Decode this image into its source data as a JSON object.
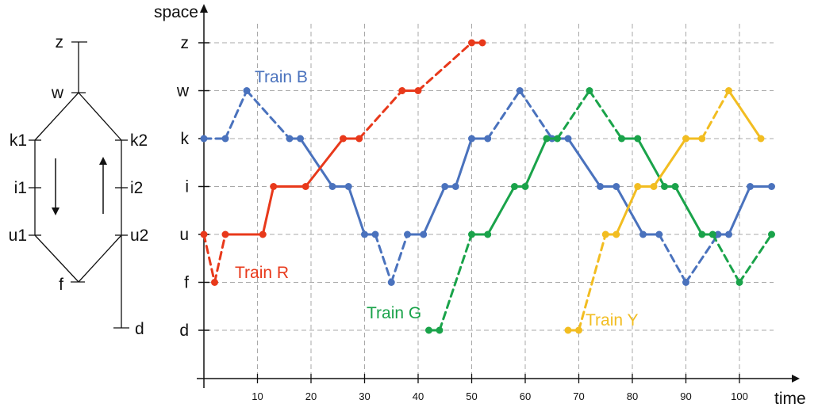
{
  "track_diagram": {
    "nodes": [
      {
        "id": "z",
        "label": "z"
      },
      {
        "id": "w",
        "label": "w"
      },
      {
        "id": "k1",
        "label": "k1"
      },
      {
        "id": "k2",
        "label": "k2"
      },
      {
        "id": "i1",
        "label": "i1"
      },
      {
        "id": "i2",
        "label": "i2"
      },
      {
        "id": "u1",
        "label": "u1"
      },
      {
        "id": "u2",
        "label": "u2"
      },
      {
        "id": "f",
        "label": "f"
      },
      {
        "id": "d",
        "label": "d"
      }
    ],
    "arrows": [
      "down",
      "up"
    ]
  },
  "chart_data": {
    "type": "line",
    "xlabel": "time",
    "ylabel": "space",
    "x_ticks": [
      10,
      20,
      30,
      40,
      50,
      60,
      70,
      80,
      90,
      100
    ],
    "xlim": [
      0,
      110
    ],
    "y_categories": [
      "d",
      "f",
      "u",
      "i",
      "k",
      "w",
      "z"
    ],
    "grid": true,
    "series": [
      {
        "name": "Train B",
        "color": "#4a72bd",
        "points": [
          [
            0,
            "k"
          ],
          [
            4,
            "k"
          ],
          [
            8,
            "w"
          ],
          [
            16,
            "k"
          ],
          [
            18,
            "k"
          ],
          [
            24,
            "i"
          ],
          [
            27,
            "i"
          ],
          [
            30,
            "u"
          ],
          [
            32,
            "u"
          ],
          [
            35,
            "f"
          ],
          [
            38,
            "u"
          ],
          [
            41,
            "u"
          ],
          [
            45,
            "i"
          ],
          [
            47,
            "i"
          ],
          [
            50,
            "k"
          ],
          [
            53,
            "k"
          ],
          [
            59,
            "w"
          ],
          [
            65,
            "k"
          ],
          [
            68,
            "k"
          ],
          [
            74,
            "i"
          ],
          [
            77,
            "i"
          ],
          [
            82,
            "u"
          ],
          [
            85,
            "u"
          ],
          [
            90,
            "f"
          ],
          [
            96,
            "u"
          ],
          [
            98,
            "u"
          ],
          [
            102,
            "i"
          ],
          [
            106,
            "i"
          ]
        ],
        "segment_styles": [
          "dashed",
          "dashed",
          "dashed",
          "solid",
          "solid",
          "solid",
          "solid",
          "solid",
          "dashed",
          "dashed",
          "solid",
          "solid",
          "solid",
          "solid",
          "solid",
          "dashed",
          "dashed",
          "solid",
          "solid",
          "solid",
          "solid",
          "solid",
          "dashed",
          "dashed",
          "dashed",
          "solid",
          "solid"
        ]
      },
      {
        "name": "Train R",
        "color": "#e8391b",
        "points": [
          [
            0,
            "u"
          ],
          [
            2,
            "f"
          ],
          [
            4,
            "u"
          ],
          [
            11,
            "u"
          ],
          [
            13,
            "i"
          ],
          [
            19,
            "i"
          ],
          [
            26,
            "k"
          ],
          [
            29,
            "k"
          ],
          [
            37,
            "w"
          ],
          [
            40,
            "w"
          ],
          [
            50,
            "z"
          ],
          [
            52,
            "z"
          ]
        ],
        "segment_styles": [
          "dashed",
          "dashed",
          "solid",
          "solid",
          "solid",
          "solid",
          "solid",
          "dashed",
          "solid",
          "dashed",
          "dashed"
        ]
      },
      {
        "name": "Train G",
        "color": "#1aa34a",
        "points": [
          [
            42,
            "d"
          ],
          [
            44,
            "d"
          ],
          [
            50,
            "u"
          ],
          [
            53,
            "u"
          ],
          [
            58,
            "i"
          ],
          [
            60,
            "i"
          ],
          [
            64,
            "k"
          ],
          [
            66,
            "k"
          ],
          [
            72,
            "w"
          ],
          [
            78,
            "k"
          ],
          [
            81,
            "k"
          ],
          [
            86,
            "i"
          ],
          [
            88,
            "i"
          ],
          [
            93,
            "u"
          ],
          [
            95,
            "u"
          ],
          [
            100,
            "f"
          ],
          [
            106,
            "u"
          ]
        ],
        "segment_styles": [
          "dashed",
          "dashed",
          "solid",
          "solid",
          "solid",
          "solid",
          "solid",
          "dashed",
          "dashed",
          "solid",
          "solid",
          "solid",
          "solid",
          "solid",
          "dashed",
          "dashed"
        ]
      },
      {
        "name": "Train Y",
        "color": "#f2bd21",
        "points": [
          [
            68,
            "d"
          ],
          [
            70,
            "d"
          ],
          [
            75,
            "u"
          ],
          [
            77,
            "u"
          ],
          [
            81,
            "i"
          ],
          [
            84,
            "i"
          ],
          [
            90,
            "k"
          ],
          [
            93,
            "k"
          ],
          [
            98,
            "w"
          ],
          [
            104,
            "k"
          ]
        ],
        "segment_styles": [
          "dashed",
          "dashed",
          "solid",
          "solid",
          "solid",
          "solid",
          "solid",
          "dashed",
          "solid"
        ]
      }
    ]
  }
}
